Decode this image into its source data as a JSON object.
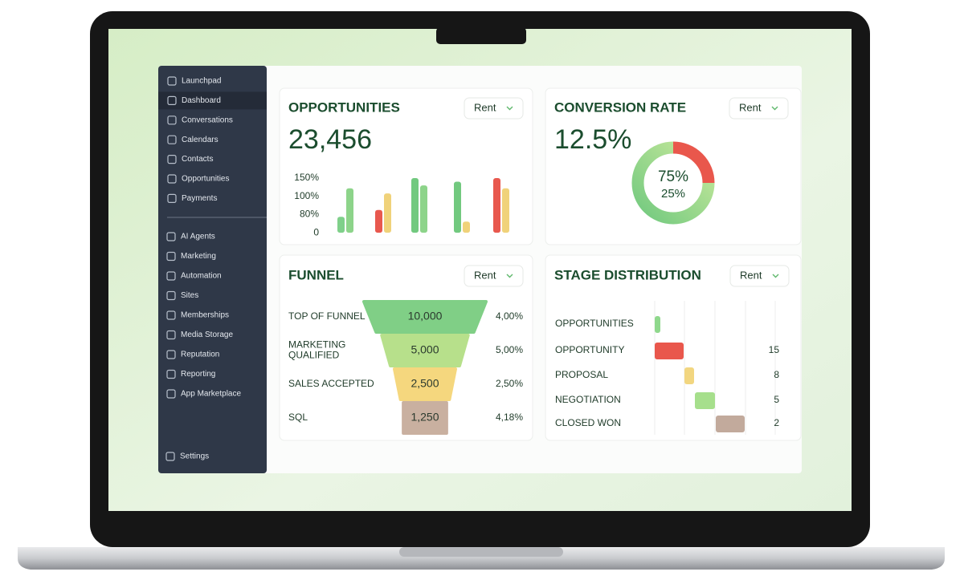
{
  "sidebar": {
    "main": [
      "Launchpad",
      "Dashboard",
      "Conversations",
      "Calendars",
      "Contacts",
      "Opportunities",
      "Payments"
    ],
    "tools": [
      "AI Agents",
      "Marketing",
      "Automation",
      "Sites",
      "Memberships",
      "Media Storage",
      "Reputation",
      "Reporting",
      "App Marketplace"
    ],
    "settings": "Settings",
    "active": 1
  },
  "opportunities": {
    "title": "OPPORTUNITIES",
    "filter": "Rent",
    "total": "23,456",
    "chart": {
      "type": "bar",
      "ylim": [
        0,
        150
      ],
      "yticks": [
        {
          "value": 150,
          "label": "150%"
        },
        {
          "value": 100,
          "label": "100%"
        },
        {
          "value": 80,
          "label": "80%"
        },
        0
      ],
      "series": [
        {
          "values": [
            70,
            85,
            150,
            140,
            150
          ],
          "colors": [
            "#7fd08a",
            "#e8584e",
            "#72c97f",
            "#72c97f",
            "#e8584e"
          ]
        },
        {
          "values": [
            122,
            108,
            130,
            49,
            122
          ],
          "colors": [
            "#8dd48a",
            "#f0d27a",
            "#8dd48a",
            "#f0d27a",
            "#f0d27a"
          ]
        }
      ]
    }
  },
  "conversion": {
    "title": "CONVERSION RATE",
    "filter": "Rent",
    "rate": "12.5%",
    "chart": {
      "type": "pie",
      "values": [
        25,
        75
      ],
      "value_labels": [
        "25%",
        "75%"
      ],
      "colors": [
        "#e9574c",
        "#72c97f"
      ],
      "gradient_end": "#c8e99c"
    }
  },
  "funnel": {
    "title": "FUNNEL",
    "filter": "Rent",
    "labels": [
      "TOP OF FUNNEL",
      "MARKETING\nQUALIFIED",
      "SALES ACCEPTED",
      "SQL"
    ],
    "values": [
      10000,
      5000,
      2500,
      1250
    ],
    "value_labels": [
      "10,000",
      "5,000",
      "2,500",
      "1,250"
    ],
    "rates": [
      "4,00%",
      "5,00%",
      "2,50%",
      "4,18%"
    ],
    "colors": [
      "#80cf86",
      "#b7e08b",
      "#f5d77e",
      "#c9b0a0"
    ]
  },
  "stages": {
    "title": "STAGE DISTRIBUTION",
    "filter": "Rent",
    "labels": [
      "OPPORTUNITIES",
      "OPPORTUNITY",
      "PROPOSAL",
      "NEGOTIATION",
      "CLOSED WON"
    ],
    "counts": [
      null,
      15,
      8,
      5,
      2
    ],
    "colors": [
      "#8fd88c",
      "#e9574c",
      "#f2d680",
      "#a6df8c",
      "#c2aa9c"
    ]
  }
}
